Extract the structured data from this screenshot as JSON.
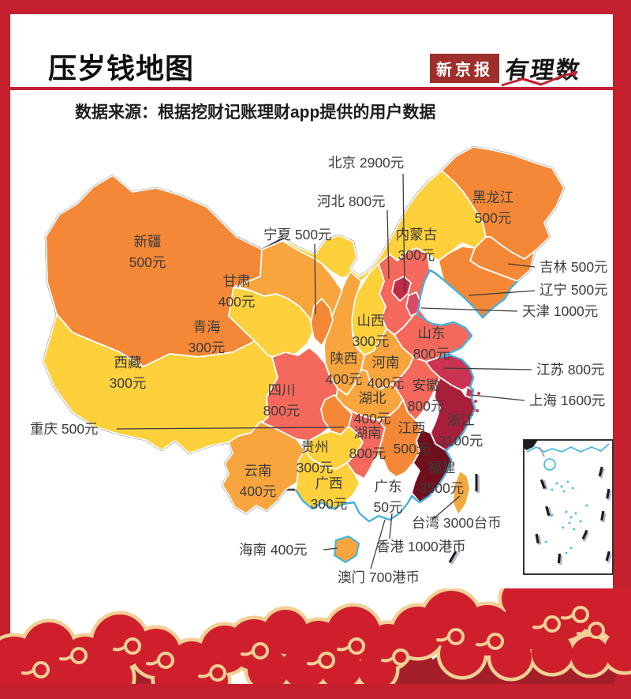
{
  "header": {
    "title": "压岁钱地图",
    "logo_boxed": "新京报",
    "logo_script": "有理数"
  },
  "subtitle": "数据来源：根据挖财记账理财app提供的用户数据",
  "colors": {
    "frame_red": "#c4202e",
    "cloud_red": "#cf1f2d",
    "cloud_outline": "#f2cf96",
    "coast_blue": "#3ab5e8",
    "label_gray": "#3c3c3c",
    "v300": "#fdd03c",
    "v400": "#f9a53e",
    "v500": "#f58836",
    "v800": "#f4695c"
  },
  "map": {
    "regions": [
      {
        "id": "xinjiang",
        "name": "新疆",
        "value": "500元",
        "color": "#f58836"
      },
      {
        "id": "xizang",
        "name": "西藏",
        "value": "300元",
        "color": "#fdd03c"
      },
      {
        "id": "qinghai",
        "name": "青海",
        "value": "300元",
        "color": "#fdd03c"
      },
      {
        "id": "gansu",
        "name": "甘肃",
        "value": "400元",
        "color": "#f9a53e"
      },
      {
        "id": "neimenggu",
        "name": "内蒙古",
        "value": "300元",
        "color": "#fdd03c"
      },
      {
        "id": "heilongjiang",
        "name": "黑龙江",
        "value": "500元",
        "color": "#f58836"
      },
      {
        "id": "jilin",
        "name": "吉林",
        "value": "500元",
        "color": "#f58836"
      },
      {
        "id": "liaoning",
        "name": "辽宁",
        "value": "500元",
        "color": "#f58836"
      },
      {
        "id": "hebei",
        "name": "河北",
        "value": "800元",
        "color": "#f4695c"
      },
      {
        "id": "shanxi",
        "name": "山西",
        "value": "300元",
        "color": "#fdd03c"
      },
      {
        "id": "shandong",
        "name": "山东",
        "value": "800元",
        "color": "#f4695c"
      },
      {
        "id": "shaanxi",
        "name": "陕西",
        "value": "400元",
        "color": "#f9a53e"
      },
      {
        "id": "henan",
        "name": "河南",
        "value": "400元",
        "color": "#f9a53e"
      },
      {
        "id": "jiangsu",
        "name": "江苏",
        "value": "800元",
        "color": "#ca3351"
      },
      {
        "id": "anhui",
        "name": "安徽",
        "value": "800元",
        "color": "#f4695c"
      },
      {
        "id": "hubei",
        "name": "湖北",
        "value": "400元",
        "color": "#f9a53e"
      },
      {
        "id": "sichuan",
        "name": "四川",
        "value": "800元",
        "color": "#f4695c"
      },
      {
        "id": "hunan",
        "name": "湖南",
        "value": "800元",
        "color": "#f4695c"
      },
      {
        "id": "jiangxi",
        "name": "江西",
        "value": "500元",
        "color": "#f58836"
      },
      {
        "id": "zhejiang",
        "name": "浙江",
        "value": "3100元",
        "color": "#a81f39"
      },
      {
        "id": "fujian",
        "name": "福建",
        "value": "3500元",
        "color": "#70101f"
      },
      {
        "id": "guizhou",
        "name": "贵州",
        "value": "300元",
        "color": "#fdd03c"
      },
      {
        "id": "yunnan",
        "name": "云南",
        "value": "400元",
        "color": "#f9a53e"
      },
      {
        "id": "guangxi",
        "name": "广西",
        "value": "300元",
        "color": "#fdd03c"
      },
      {
        "id": "guangdong",
        "name": "广东",
        "value": "50元",
        "color": "#ffffff"
      },
      {
        "id": "ningxia",
        "name": "宁夏",
        "value": "500元",
        "color": "#f58836"
      },
      {
        "id": "chongqing",
        "name": "重庆",
        "value": "500元",
        "color": "#f58836"
      },
      {
        "id": "beijing",
        "name": "北京",
        "value": "2900元",
        "color": "#c02b45"
      },
      {
        "id": "tianjin",
        "name": "天津",
        "value": "1000元",
        "color": "#d94a63"
      },
      {
        "id": "shanghai",
        "name": "上海",
        "value": "1600元",
        "color": "#c63552"
      },
      {
        "id": "hainan",
        "name": "海南",
        "value": "400元",
        "color": "#f9a53e"
      },
      {
        "id": "taiwan",
        "name": "台湾",
        "value": "3000台币",
        "color": "#f3a93f"
      },
      {
        "id": "hongkong",
        "name": "香港",
        "value": "1000港币",
        "color": ""
      },
      {
        "id": "macau",
        "name": "澳门",
        "value": "700港币",
        "color": ""
      }
    ]
  }
}
